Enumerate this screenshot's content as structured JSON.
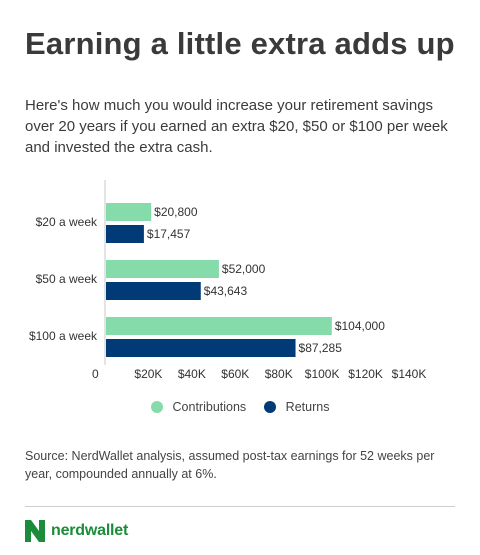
{
  "title": "Earning a little extra adds up",
  "subtitle": "Here's how much you would increase your retirement savings over 20 years if you earned an extra $20, $50 or $100 per week and invested the extra cash.",
  "source": "Source: NerdWallet analysis, assumed post-tax earnings for 52 weeks per year, compounded annually at 6%.",
  "brand": {
    "name": "nerdwallet",
    "color": "#1a8c3a"
  },
  "colors": {
    "contributions": "#86dbab",
    "returns": "#003b77"
  },
  "chart_data": {
    "type": "bar",
    "orientation": "horizontal",
    "title": "",
    "categories": [
      "$20 a week",
      "$50 a week",
      "$100 a week"
    ],
    "series": [
      {
        "name": "Contributions",
        "values": [
          20800,
          52000,
          104000
        ],
        "labels": [
          "$20,800",
          "$52,000",
          "$104,000"
        ],
        "color": "#86dbab"
      },
      {
        "name": "Returns",
        "values": [
          17457,
          43643,
          87285
        ],
        "labels": [
          "$17,457",
          "$43,643",
          "$87,285"
        ],
        "color": "#003b77"
      }
    ],
    "xlim": [
      0,
      140000
    ],
    "ticks": [
      0,
      20000,
      40000,
      60000,
      80000,
      100000,
      120000,
      140000
    ],
    "tick_labels": [
      "0",
      "$20K",
      "$40K",
      "$60K",
      "$80K",
      "$100K",
      "$120K",
      "$140K"
    ],
    "grid": false,
    "legend_position": "bottom"
  }
}
